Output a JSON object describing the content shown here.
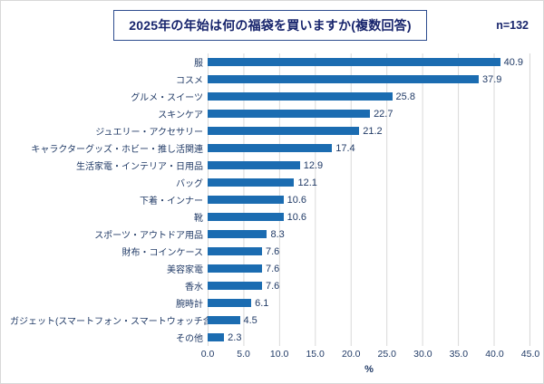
{
  "header": {
    "title": "2025年の年始は何の福袋を買いますか(複数回答)",
    "sample_size": "n=132"
  },
  "chart_data": {
    "type": "bar",
    "orientation": "horizontal",
    "title": "2025年の年始は何の福袋を買いますか(複数回答)",
    "sample_note": "n=132",
    "categories": [
      "服",
      "コスメ",
      "グルメ・スイーツ",
      "スキンケア",
      "ジュエリー・アクセサリー",
      "キャラクターグッズ・ホビー・推し活関連",
      "生活家電・インテリア・日用品",
      "バッグ",
      "下着・インナー",
      "靴",
      "スポーツ・アウトドア用品",
      "財布・コインケース",
      "美容家電",
      "香水",
      "腕時計",
      "ガジェット(スマートフォン・スマートウォッチ含む)",
      "その他"
    ],
    "values": [
      40.9,
      37.9,
      25.8,
      22.7,
      21.2,
      17.4,
      12.9,
      12.1,
      10.6,
      10.6,
      8.3,
      7.6,
      7.6,
      7.6,
      6.1,
      4.5,
      2.3
    ],
    "xlabel": "%",
    "xlim": [
      0,
      45
    ],
    "xticks": [
      "0.0",
      "5.0",
      "10.0",
      "15.0",
      "20.0",
      "25.0",
      "30.0",
      "35.0",
      "40.0",
      "45.0"
    ],
    "bar_color": "#1b6cb1",
    "grid": true,
    "legend_position": "none"
  }
}
